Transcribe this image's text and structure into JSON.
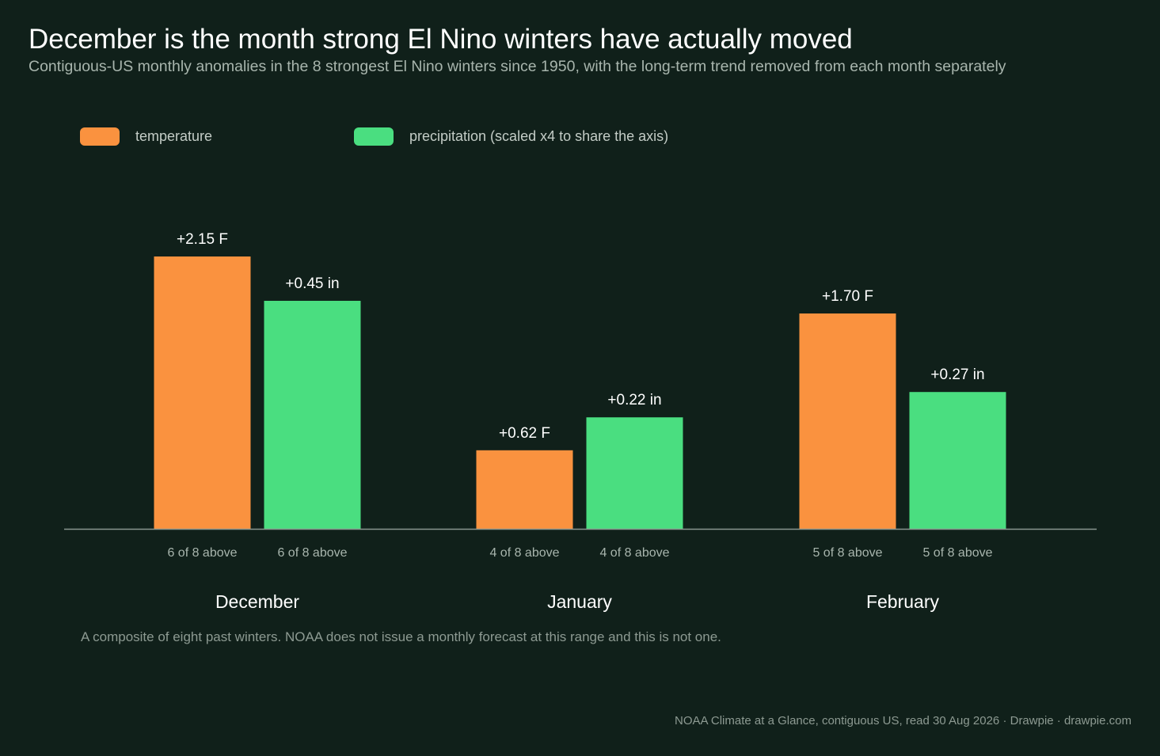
{
  "title": "December is the month strong El Nino winters have actually moved",
  "subtitle": "Contiguous-US monthly anomalies in the 8 strongest El Nino winters since 1950, with the long-term trend removed from each month separately",
  "legend": [
    {
      "label": "temperature",
      "color": "#fa923f"
    },
    {
      "label": "precipitation (scaled x4 to share the axis)",
      "color": "#4ade80"
    }
  ],
  "note": "A composite of eight past winters. NOAA does not issue a monthly forecast at this range and this is not one.",
  "source": "NOAA Climate at a Glance, contiguous US, read 30 Aug 2026  ·  Drawpie · drawpie.com",
  "chart_data": {
    "type": "bar",
    "categories": [
      "December",
      "January",
      "February"
    ],
    "ylim": [
      0,
      2.5
    ],
    "grid": false,
    "legend_position": "top-left",
    "series": [
      {
        "name": "temperature",
        "color": "#fa923f",
        "values": [
          2.15,
          0.62,
          1.7
        ],
        "labels": [
          "+2.15 F",
          "+0.62 F",
          "+1.70 F"
        ],
        "counts": [
          "6 of 8 above",
          "4 of 8 above",
          "5 of 8 above"
        ]
      },
      {
        "name": "precipitation (scaled x4 to share the axis)",
        "color": "#4ade80",
        "values": [
          0.45,
          0.22,
          0.27
        ],
        "plotted_values": [
          1.8,
          0.88,
          1.08
        ],
        "labels": [
          "+0.45 in",
          "+0.22 in",
          "+0.27 in"
        ],
        "counts": [
          "6 of 8 above",
          "4 of 8 above",
          "5 of 8 above"
        ]
      }
    ]
  }
}
